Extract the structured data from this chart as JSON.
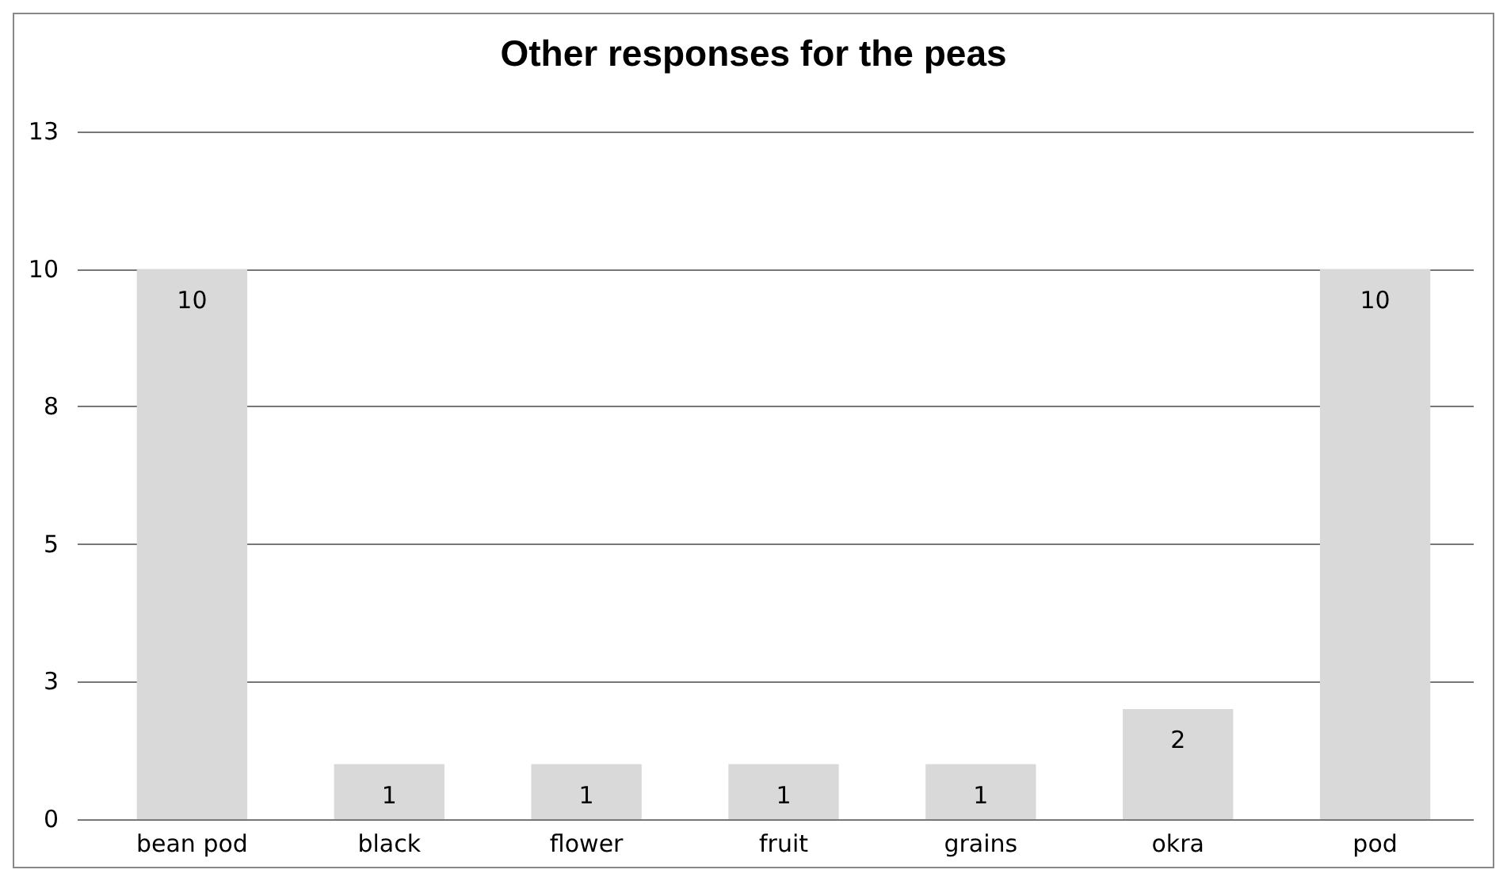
{
  "chart_data": {
    "type": "bar",
    "title": "Other responses for the peas",
    "categories": [
      "bean pod",
      "black",
      "flower",
      "fruit",
      "grains",
      "okra",
      "pod"
    ],
    "values": [
      10,
      1,
      1,
      1,
      1,
      2,
      10
    ],
    "color": "#d9d9d9",
    "ylim": [
      0,
      12.5
    ],
    "yticks": [
      0,
      {
        "value": 2.5,
        "label": "3"
      },
      5,
      {
        "value": 7.5,
        "label": "8"
      },
      10,
      {
        "value": 12.5,
        "label": "13"
      }
    ],
    "grid": "y",
    "data_labels": true
  }
}
